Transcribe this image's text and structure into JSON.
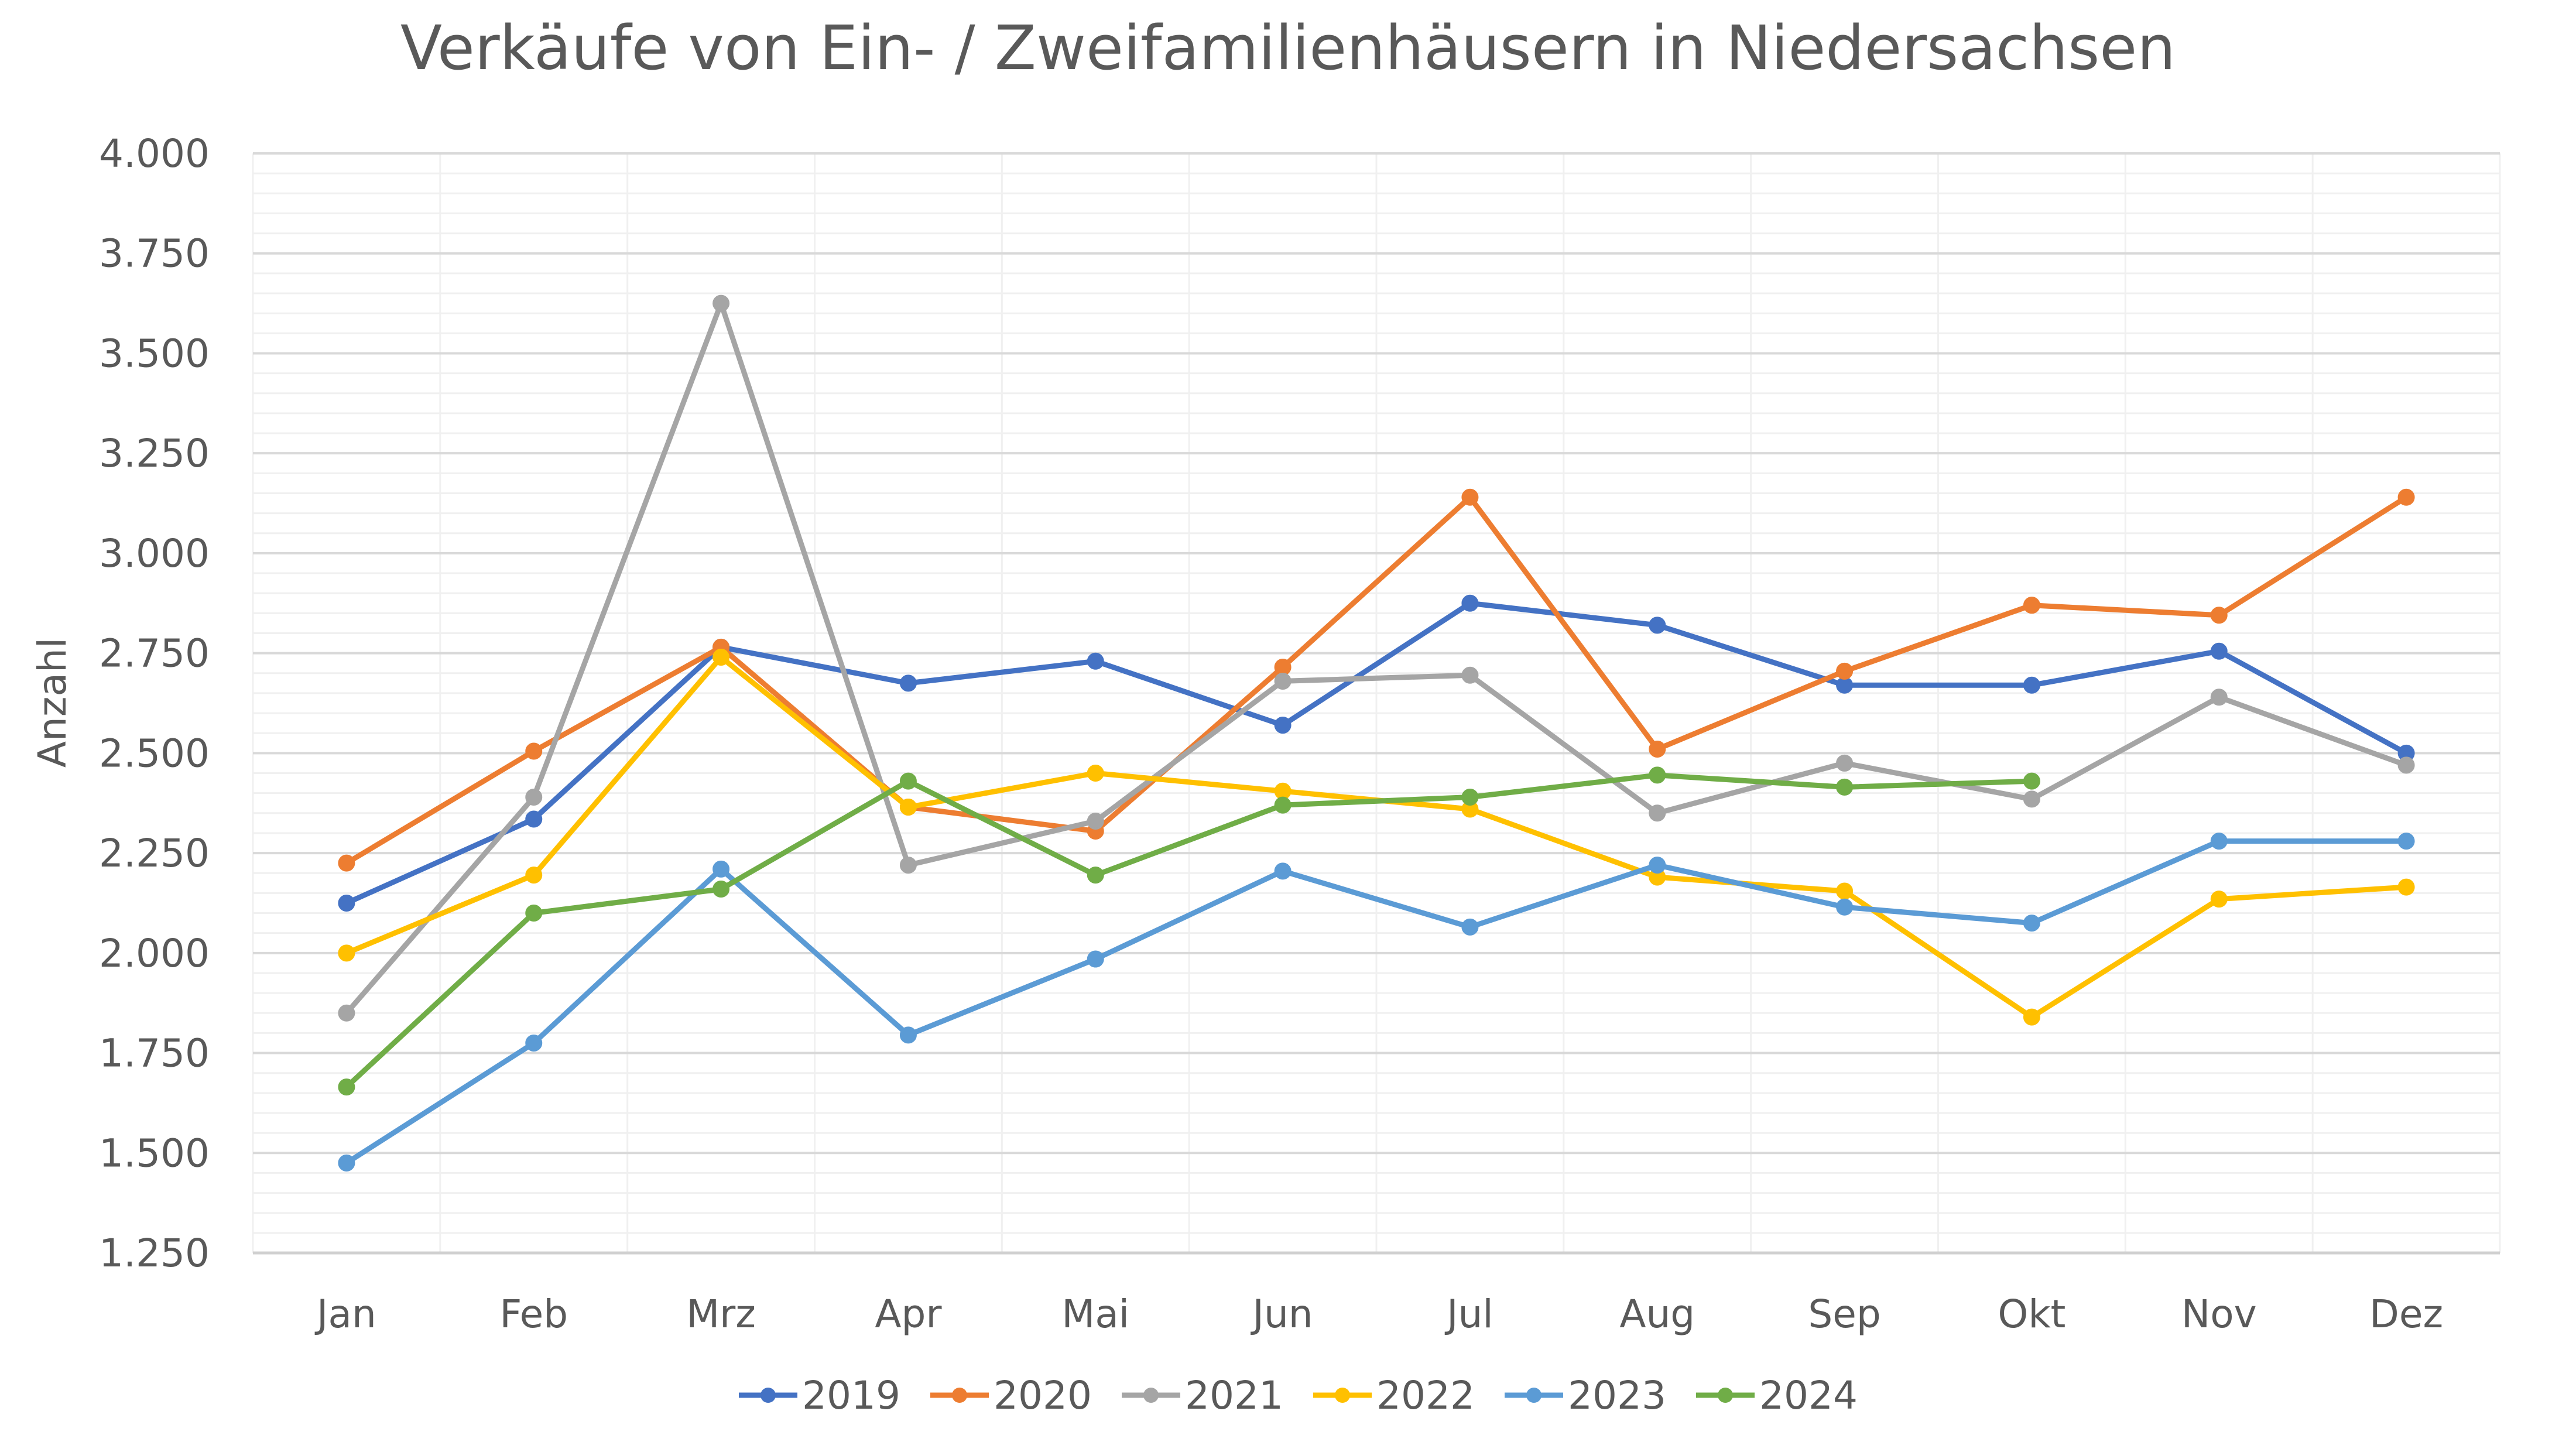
{
  "chart_data": {
    "type": "line",
    "title": "Verkäufe von Ein- / Zweifamilienhäusern in Niedersachsen",
    "xlabel": "",
    "ylabel": "Anzahl",
    "ylim": [
      1250,
      4000
    ],
    "yticks": [
      1250,
      1500,
      1750,
      2000,
      2250,
      2500,
      2750,
      3000,
      3250,
      3500,
      3750,
      4000
    ],
    "ytick_labels": [
      "1.250",
      "1.500",
      "1.750",
      "2.000",
      "2.250",
      "2.500",
      "2.750",
      "3.000",
      "3.250",
      "3.500",
      "3.750",
      "4.000"
    ],
    "grid": true,
    "legend_position": "bottom",
    "categories": [
      "Jan",
      "Feb",
      "Mrz",
      "Apr",
      "Mai",
      "Jun",
      "Jul",
      "Aug",
      "Sep",
      "Okt",
      "Nov",
      "Dez"
    ],
    "series": [
      {
        "name": "2019",
        "color": "#4472C4",
        "values": [
          2125,
          2335,
          2765,
          2675,
          2730,
          2570,
          2875,
          2820,
          2670,
          2670,
          2755,
          2500
        ]
      },
      {
        "name": "2020",
        "color": "#ED7D31",
        "values": [
          2225,
          2505,
          2765,
          2365,
          2305,
          2715,
          3140,
          2510,
          2705,
          2870,
          2845,
          3140
        ]
      },
      {
        "name": "2021",
        "color": "#A5A5A5",
        "values": [
          1850,
          2390,
          3625,
          2220,
          2330,
          2680,
          2695,
          2350,
          2475,
          2385,
          2640,
          2470
        ]
      },
      {
        "name": "2022",
        "color": "#FFC000",
        "values": [
          2000,
          2195,
          2740,
          2365,
          2450,
          2405,
          2360,
          2190,
          2155,
          1840,
          2135,
          2165
        ]
      },
      {
        "name": "2023",
        "color": "#5B9BD5",
        "values": [
          1475,
          1775,
          2210,
          1795,
          1985,
          2205,
          2065,
          2220,
          2115,
          2075,
          2280,
          2280
        ]
      },
      {
        "name": "2024",
        "color": "#70AD47",
        "values": [
          1665,
          2100,
          2160,
          2430,
          2195,
          2370,
          2390,
          2445,
          2415,
          2430,
          null,
          null
        ]
      }
    ]
  }
}
